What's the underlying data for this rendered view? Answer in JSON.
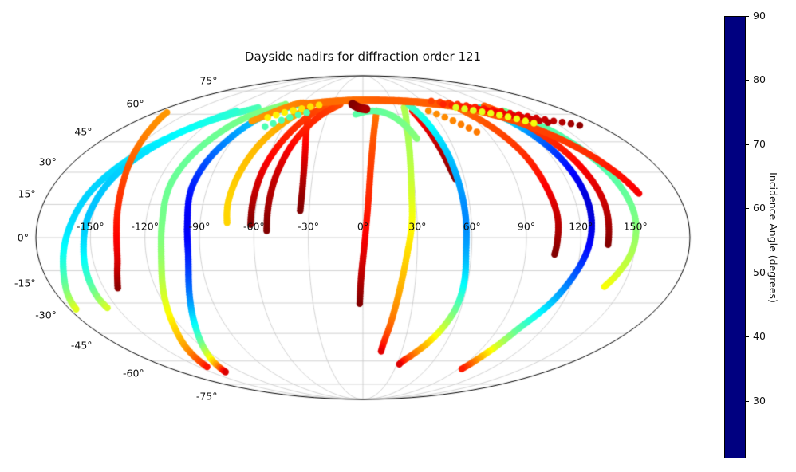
{
  "chart_data": {
    "type": "scatter",
    "projection": "mollweide",
    "title": "Dayside nadirs for diffraction order 121",
    "grid": {
      "on": true,
      "lat_lines": [
        -75,
        -60,
        -45,
        -30,
        -15,
        0,
        15,
        30,
        45,
        60,
        75
      ],
      "lon_lines": [
        -150,
        -120,
        -90,
        -60,
        -30,
        0,
        30,
        60,
        90,
        120,
        150
      ],
      "lat_tick_labels": [
        "75°",
        "60°",
        "45°",
        "30°",
        "15°",
        "0°",
        "-15°",
        "-30°",
        "-45°",
        "-60°",
        "-75°"
      ],
      "lon_tick_labels": [
        "-150°",
        "-120°",
        "-90°",
        "-60°",
        "-30°",
        "0°",
        "30°",
        "60°",
        "90°",
        "120°",
        "150°"
      ]
    },
    "colorbar": {
      "label": "Incidence Angle (degrees)",
      "ticks": [
        30,
        40,
        50,
        60,
        70,
        80,
        90
      ],
      "vmin": 21,
      "vmax": 90,
      "colormap": "jet"
    },
    "tracks": [
      {
        "id": "west-cyan-1",
        "spacing": 3,
        "r": 4.2,
        "pts": [
          [
            -97,
            64,
            52
          ],
          [
            -122,
            56,
            49
          ],
          [
            -142,
            42,
            46
          ],
          [
            -155,
            24,
            44
          ],
          [
            -162,
            4,
            45
          ],
          [
            -168,
            -14,
            50
          ],
          [
            -174,
            -27,
            57
          ],
          [
            -176,
            -33,
            62
          ]
        ]
      },
      {
        "id": "west-cyan-2",
        "spacing": 3,
        "r": 4.2,
        "pts": [
          [
            -112,
            62,
            50
          ],
          [
            -132,
            50,
            47
          ],
          [
            -146,
            32,
            44
          ],
          [
            -152,
            12,
            43
          ],
          [
            -154,
            -4,
            45
          ],
          [
            -156,
            -17,
            50
          ],
          [
            -157,
            -27,
            56
          ],
          [
            -156,
            -33,
            62
          ]
        ]
      },
      {
        "id": "west-red",
        "spacing": 3,
        "r": 4.2,
        "pts": [
          [
            -170,
            61,
            71
          ],
          [
            -158,
            52,
            72
          ],
          [
            -148,
            40,
            74
          ],
          [
            -140,
            24,
            77
          ],
          [
            -136,
            6,
            80
          ],
          [
            -136,
            -8,
            83
          ],
          [
            -139,
            -17,
            86
          ],
          [
            -142,
            -23,
            89
          ]
        ]
      },
      {
        "id": "west-green",
        "spacing": 3,
        "r": 4.2,
        "pts": [
          [
            -75,
            66,
            56
          ],
          [
            -96,
            58,
            55
          ],
          [
            -107,
            44,
            54
          ],
          [
            -112,
            26,
            54
          ],
          [
            -111,
            6,
            55
          ],
          [
            -112,
            -10,
            57
          ],
          [
            -117,
            -26,
            61
          ],
          [
            -124,
            -41,
            66
          ],
          [
            -133,
            -53,
            71
          ],
          [
            -140,
            -61,
            77
          ],
          [
            -143,
            -64,
            81
          ]
        ]
      },
      {
        "id": "west-blue",
        "spacing": 3,
        "r": 4.2,
        "pts": [
          [
            -62,
            66,
            49
          ],
          [
            -84,
            58,
            44
          ],
          [
            -95,
            42,
            38
          ],
          [
            -99,
            24,
            32
          ],
          [
            -97,
            6,
            29
          ],
          [
            -97,
            -10,
            32
          ],
          [
            -102,
            -26,
            38
          ],
          [
            -110,
            -41,
            47
          ],
          [
            -120,
            -53,
            57
          ],
          [
            -130,
            -62,
            70
          ],
          [
            -136,
            -67,
            85
          ]
        ]
      },
      {
        "id": "west-orange-end",
        "spacing": 3,
        "r": 4.2,
        "pts": [
          [
            -48,
            65,
            70
          ],
          [
            -60,
            57,
            70
          ],
          [
            -69,
            45,
            69
          ],
          [
            -74,
            30,
            68
          ],
          [
            -76,
            16,
            67
          ],
          [
            -75,
            6,
            67
          ]
        ]
      },
      {
        "id": "west-darkred-1",
        "spacing": 3,
        "r": 4.2,
        "pts": [
          [
            -30,
            67,
            75
          ],
          [
            -44,
            60,
            77
          ],
          [
            -54,
            48,
            79
          ],
          [
            -60,
            33,
            82
          ],
          [
            -62,
            18,
            86
          ],
          [
            -62,
            5,
            90
          ]
        ]
      },
      {
        "id": "west-darkred-2",
        "spacing": 3,
        "r": 4.2,
        "pts": [
          [
            -22,
            66,
            76
          ],
          [
            -36,
            59,
            78
          ],
          [
            -46,
            47,
            80
          ],
          [
            -51,
            32,
            84
          ],
          [
            -53,
            17,
            87
          ],
          [
            -53,
            2,
            90
          ]
        ]
      },
      {
        "id": "hairpin-darkred",
        "spacing": 3,
        "r": 4.2,
        "pts": [
          [
            -88,
            56,
            71
          ],
          [
            -74,
            63,
            72
          ],
          [
            -60,
            67,
            73
          ],
          [
            -49,
            63,
            76
          ],
          [
            -42,
            52,
            79
          ],
          [
            -37,
            38,
            83
          ],
          [
            -35,
            24,
            87
          ],
          [
            -35,
            12,
            90
          ]
        ]
      },
      {
        "id": "center-red",
        "spacing": 3,
        "r": 4.2,
        "pts": [
          [
            12,
            62,
            73
          ],
          [
            8,
            50,
            75
          ],
          [
            5,
            34,
            77
          ],
          [
            3,
            16,
            79
          ],
          [
            1,
            -2,
            82
          ],
          [
            -1,
            -18,
            86
          ],
          [
            -2,
            -31,
            90
          ]
        ]
      },
      {
        "id": "center-green-30",
        "spacing": 3,
        "r": 4.2,
        "pts": [
          [
            38,
            64,
            59
          ],
          [
            33,
            52,
            58
          ],
          [
            30,
            38,
            59
          ],
          [
            28,
            22,
            61
          ],
          [
            27,
            6,
            64
          ],
          [
            24,
            -10,
            67
          ],
          [
            21,
            -26,
            70
          ],
          [
            18,
            -40,
            74
          ],
          [
            15,
            -50,
            79
          ],
          [
            14,
            -55,
            84
          ]
        ]
      },
      {
        "id": "center-darkred-50",
        "spacing": 3,
        "r": 4.4,
        "pts": [
          [
            44,
            62,
            80
          ],
          [
            48,
            52,
            83
          ],
          [
            51,
            42,
            86
          ],
          [
            53,
            33,
            88
          ],
          [
            55,
            26,
            90
          ]
        ]
      },
      {
        "id": "cyan-57",
        "spacing": 3,
        "r": 4.2,
        "pts": [
          [
            44,
            66,
            52
          ],
          [
            50,
            56,
            48
          ],
          [
            54,
            42,
            44
          ],
          [
            56,
            26,
            41
          ],
          [
            57,
            10,
            39
          ],
          [
            57,
            -6,
            41
          ],
          [
            58,
            -20,
            46
          ],
          [
            57,
            -32,
            53
          ],
          [
            53,
            -42,
            60
          ],
          [
            47,
            -50,
            67
          ],
          [
            40,
            -56,
            73
          ],
          [
            34,
            -60,
            79
          ],
          [
            32,
            -62,
            84
          ]
        ]
      },
      {
        "id": "center-mint-arc",
        "spacing": 3,
        "r": 4.2,
        "pts": [
          [
            -6,
            60,
            53
          ],
          [
            8,
            62,
            53
          ],
          [
            22,
            60,
            54
          ],
          [
            32,
            54,
            55
          ],
          [
            38,
            46,
            56
          ]
        ]
      },
      {
        "id": "right-blue-120",
        "spacing": 3,
        "r": 4.2,
        "pts": [
          [
            108,
            64,
            50
          ],
          [
            117,
            56,
            44
          ],
          [
            123,
            44,
            36
          ],
          [
            126,
            30,
            30
          ],
          [
            127,
            14,
            27
          ],
          [
            125,
            -2,
            29
          ],
          [
            120,
            -16,
            35
          ],
          [
            113,
            -30,
            43
          ],
          [
            104,
            -42,
            52
          ],
          [
            100,
            -50,
            59
          ],
          [
            96,
            -58,
            69
          ],
          [
            93,
            -65,
            80
          ]
        ]
      },
      {
        "id": "right-red-107",
        "spacing": 3,
        "r": 4.2,
        "pts": [
          [
            88,
            63,
            74
          ],
          [
            97,
            53,
            76
          ],
          [
            103,
            40,
            78
          ],
          [
            106,
            25,
            81
          ],
          [
            108,
            10,
            85
          ],
          [
            107,
            -2,
            88
          ],
          [
            106,
            -8,
            90
          ]
        ]
      },
      {
        "id": "right-red-135",
        "spacing": 3,
        "r": 4.2,
        "pts": [
          [
            115,
            65,
            75
          ],
          [
            124,
            56,
            77
          ],
          [
            130,
            44,
            79
          ],
          [
            134,
            30,
            82
          ],
          [
            136,
            15,
            85
          ],
          [
            135,
            -4,
            90
          ]
        ]
      },
      {
        "id": "right-green-150",
        "spacing": 3,
        "r": 4.2,
        "pts": [
          [
            124,
            62,
            55
          ],
          [
            136,
            53,
            53
          ],
          [
            144,
            40,
            52
          ],
          [
            149,
            25,
            53
          ],
          [
            151,
            10,
            55
          ],
          [
            149,
            -5,
            58
          ],
          [
            144,
            -16,
            61
          ],
          [
            139,
            -23,
            64
          ]
        ]
      },
      {
        "id": "right-orange-arc",
        "spacing": 3,
        "r": 4.2,
        "pts": [
          [
            55,
            67,
            74
          ],
          [
            80,
            65,
            74
          ],
          [
            100,
            62,
            75
          ],
          [
            118,
            57,
            76
          ],
          [
            132,
            50,
            77
          ],
          [
            143,
            41,
            78
          ],
          [
            152,
            30,
            80
          ],
          [
            158,
            20,
            82
          ]
        ]
      },
      {
        "id": "top-band-orange",
        "spacing": 3,
        "r": 4.8,
        "pts": [
          [
            -58,
            66,
            73
          ],
          [
            -35,
            67.5,
            74
          ],
          [
            -10,
            68.5,
            74
          ],
          [
            15,
            68.5,
            75
          ],
          [
            40,
            68,
            75
          ],
          [
            62,
            67,
            75
          ],
          [
            85,
            65.5,
            76
          ]
        ]
      },
      {
        "id": "boundary-red-dots-1",
        "spacing": 11,
        "r": 4.3,
        "pts": [
          [
            70,
            68,
            77
          ],
          [
            92,
            66,
            78
          ],
          [
            112,
            63,
            80
          ],
          [
            130,
            60,
            82
          ],
          [
            146,
            57,
            85
          ],
          [
            159,
            55,
            87
          ],
          [
            169,
            53,
            90
          ]
        ]
      },
      {
        "id": "boundary-red-dots-2",
        "spacing": 11,
        "r": 4.3,
        "pts": [
          [
            78,
            66,
            79
          ],
          [
            98,
            64,
            80
          ],
          [
            116,
            61,
            82
          ],
          [
            132,
            58,
            84
          ],
          [
            146,
            55,
            87
          ]
        ]
      },
      {
        "id": "right-green-dots",
        "spacing": 11,
        "r": 4.3,
        "pts": [
          [
            86,
            64,
            62
          ],
          [
            100,
            62,
            62
          ],
          [
            113,
            60,
            63
          ],
          [
            126,
            57,
            63
          ],
          [
            136,
            54,
            64
          ]
        ]
      },
      {
        "id": "orange-dots-diag",
        "spacing": 11,
        "r": 4.3,
        "pts": [
          [
            58,
            62,
            72
          ],
          [
            68,
            58,
            72
          ],
          [
            78,
            53,
            73
          ],
          [
            86,
            48,
            73
          ]
        ]
      },
      {
        "id": "top-yellow-dots",
        "spacing": 11,
        "r": 4.3,
        "pts": [
          [
            -78,
            58,
            65
          ],
          [
            -68,
            61,
            65
          ],
          [
            -57,
            63,
            66
          ],
          [
            -46,
            65,
            66
          ],
          [
            -36,
            66,
            67
          ]
        ]
      },
      {
        "id": "top-mint-dots",
        "spacing": 11,
        "r": 4.3,
        "pts": [
          [
            -74,
            53,
            52
          ],
          [
            -64,
            57,
            52
          ],
          [
            -53,
            60,
            52
          ],
          [
            -43,
            62,
            53
          ]
        ]
      },
      {
        "id": "center-darkred-blob",
        "spacing": 3,
        "r": 5.5,
        "pts": [
          [
            -10,
            66,
            90
          ],
          [
            -4,
            64,
            89
          ],
          [
            3,
            63,
            87
          ]
        ]
      }
    ]
  }
}
